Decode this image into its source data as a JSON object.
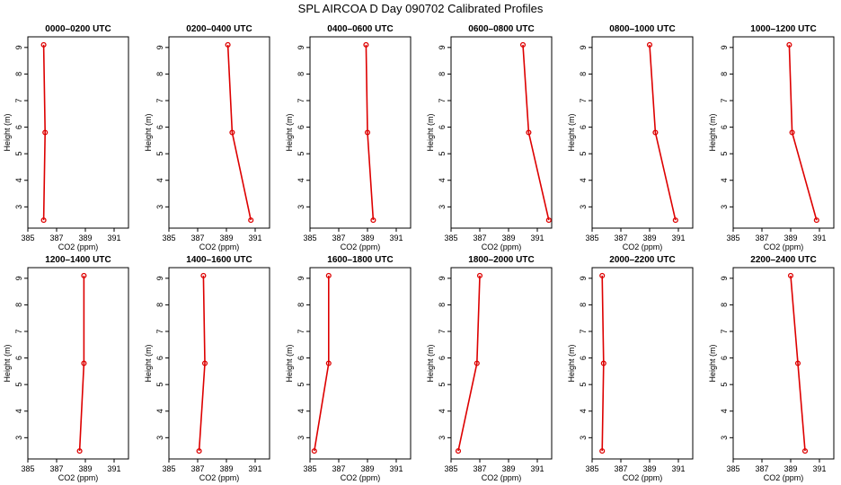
{
  "title": "SPL AIRCOA D  Day 090702  Calibrated Profiles",
  "colors": {
    "series": "#dd0000",
    "axis": "#000000",
    "background": "#ffffff"
  },
  "chart_data": [
    {
      "type": "line",
      "title": "0000–0200 UTC",
      "xlabel": "CO2 (ppm)",
      "ylabel": "Height (m)",
      "xlim": [
        385,
        392
      ],
      "ylim": [
        2.2,
        9.4
      ],
      "xticks": [
        385,
        387,
        389,
        391
      ],
      "yticks": [
        3,
        4,
        5,
        6,
        7,
        8,
        9
      ],
      "x": [
        386.1,
        386.2,
        386.1
      ],
      "y": [
        9.1,
        5.8,
        2.5
      ]
    },
    {
      "type": "line",
      "title": "0200–0400 UTC",
      "xlabel": "CO2 (ppm)",
      "ylabel": "Height (m)",
      "xlim": [
        385,
        392
      ],
      "ylim": [
        2.2,
        9.4
      ],
      "xticks": [
        385,
        387,
        389,
        391
      ],
      "yticks": [
        3,
        4,
        5,
        6,
        7,
        8,
        9
      ],
      "x": [
        389.1,
        389.4,
        390.7
      ],
      "y": [
        9.1,
        5.8,
        2.5
      ]
    },
    {
      "type": "line",
      "title": "0400–0600 UTC",
      "xlabel": "CO2 (ppm)",
      "ylabel": "Height (m)",
      "xlim": [
        385,
        392
      ],
      "ylim": [
        2.2,
        9.4
      ],
      "xticks": [
        385,
        387,
        389,
        391
      ],
      "yticks": [
        3,
        4,
        5,
        6,
        7,
        8,
        9
      ],
      "x": [
        388.9,
        389.0,
        389.4
      ],
      "y": [
        9.1,
        5.8,
        2.5
      ]
    },
    {
      "type": "line",
      "title": "0600–0800 UTC",
      "xlabel": "CO2 (ppm)",
      "ylabel": "Height (m)",
      "xlim": [
        385,
        392
      ],
      "ylim": [
        2.2,
        9.4
      ],
      "xticks": [
        385,
        387,
        389,
        391
      ],
      "yticks": [
        3,
        4,
        5,
        6,
        7,
        8,
        9
      ],
      "x": [
        390.0,
        390.4,
        391.8
      ],
      "y": [
        9.1,
        5.8,
        2.5
      ]
    },
    {
      "type": "line",
      "title": "0800–1000 UTC",
      "xlabel": "CO2 (ppm)",
      "ylabel": "Height (m)",
      "xlim": [
        385,
        392
      ],
      "ylim": [
        2.2,
        9.4
      ],
      "xticks": [
        385,
        387,
        389,
        391
      ],
      "yticks": [
        3,
        4,
        5,
        6,
        7,
        8,
        9
      ],
      "x": [
        389.0,
        389.4,
        390.8
      ],
      "y": [
        9.1,
        5.8,
        2.5
      ]
    },
    {
      "type": "line",
      "title": "1000–1200 UTC",
      "xlabel": "CO2 (ppm)",
      "ylabel": "Height (m)",
      "xlim": [
        385,
        392
      ],
      "ylim": [
        2.2,
        9.4
      ],
      "xticks": [
        385,
        387,
        389,
        391
      ],
      "yticks": [
        3,
        4,
        5,
        6,
        7,
        8,
        9
      ],
      "x": [
        388.9,
        389.1,
        390.8
      ],
      "y": [
        9.1,
        5.8,
        2.5
      ]
    },
    {
      "type": "line",
      "title": "1200–1400 UTC",
      "xlabel": "CO2 (ppm)",
      "ylabel": "Height (m)",
      "xlim": [
        385,
        392
      ],
      "ylim": [
        2.2,
        9.4
      ],
      "xticks": [
        385,
        387,
        389,
        391
      ],
      "yticks": [
        3,
        4,
        5,
        6,
        7,
        8,
        9
      ],
      "x": [
        388.9,
        388.9,
        388.6
      ],
      "y": [
        9.1,
        5.8,
        2.5
      ]
    },
    {
      "type": "line",
      "title": "1400–1600 UTC",
      "xlabel": "CO2 (ppm)",
      "ylabel": "Height (m)",
      "xlim": [
        385,
        392
      ],
      "ylim": [
        2.2,
        9.4
      ],
      "xticks": [
        385,
        387,
        389,
        391
      ],
      "yticks": [
        3,
        4,
        5,
        6,
        7,
        8,
        9
      ],
      "x": [
        387.4,
        387.5,
        387.1
      ],
      "y": [
        9.1,
        5.8,
        2.5
      ]
    },
    {
      "type": "line",
      "title": "1600–1800 UTC",
      "xlabel": "CO2 (ppm)",
      "ylabel": "Height (m)",
      "xlim": [
        385,
        392
      ],
      "ylim": [
        2.2,
        9.4
      ],
      "xticks": [
        385,
        387,
        389,
        391
      ],
      "yticks": [
        3,
        4,
        5,
        6,
        7,
        8,
        9
      ],
      "x": [
        386.3,
        386.3,
        385.3
      ],
      "y": [
        9.1,
        5.8,
        2.5
      ]
    },
    {
      "type": "line",
      "title": "1800–2000 UTC",
      "xlabel": "CO2 (ppm)",
      "ylabel": "Height (m)",
      "xlim": [
        385,
        392
      ],
      "ylim": [
        2.2,
        9.4
      ],
      "xticks": [
        385,
        387,
        389,
        391
      ],
      "yticks": [
        3,
        4,
        5,
        6,
        7,
        8,
        9
      ],
      "x": [
        387.0,
        386.8,
        385.5
      ],
      "y": [
        9.1,
        5.8,
        2.5
      ]
    },
    {
      "type": "line",
      "title": "2000–2200 UTC",
      "xlabel": "CO2 (ppm)",
      "ylabel": "Height (m)",
      "xlim": [
        385,
        392
      ],
      "ylim": [
        2.2,
        9.4
      ],
      "xticks": [
        385,
        387,
        389,
        391
      ],
      "yticks": [
        3,
        4,
        5,
        6,
        7,
        8,
        9
      ],
      "x": [
        385.7,
        385.8,
        385.7
      ],
      "y": [
        9.1,
        5.8,
        2.5
      ]
    },
    {
      "type": "line",
      "title": "2200–2400 UTC",
      "xlabel": "CO2 (ppm)",
      "ylabel": "Height (m)",
      "xlim": [
        385,
        392
      ],
      "ylim": [
        2.2,
        9.4
      ],
      "xticks": [
        385,
        387,
        389,
        391
      ],
      "yticks": [
        3,
        4,
        5,
        6,
        7,
        8,
        9
      ],
      "x": [
        389.0,
        389.5,
        390.0
      ],
      "y": [
        9.1,
        5.8,
        2.5
      ]
    }
  ]
}
